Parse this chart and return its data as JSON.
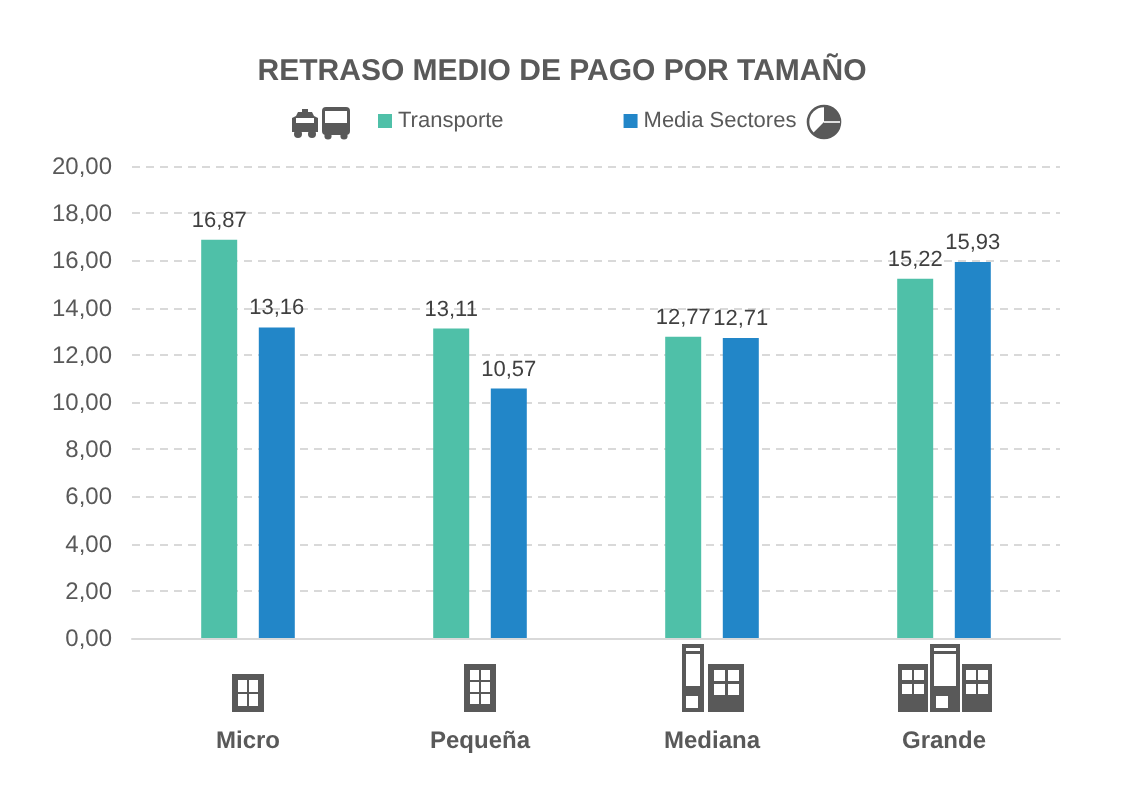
{
  "chart_data": {
    "type": "bar",
    "title": "RETRASO MEDIO DE PAGO POR TAMAÑO",
    "categories": [
      "Micro",
      "Pequeña",
      "Mediana",
      "Grande"
    ],
    "series": [
      {
        "name": "Transporte",
        "color": "#4fc0a8",
        "values": [
          16.87,
          13.11,
          12.77,
          15.22
        ],
        "value_labels": [
          "16,87",
          "13,11",
          "12,77",
          "15,22"
        ]
      },
      {
        "name": "Media Sectores",
        "color": "#2286c8",
        "values": [
          13.16,
          10.57,
          12.71,
          15.93
        ],
        "value_labels": [
          "13,16",
          "10,57",
          "12,71",
          "15,93"
        ]
      }
    ],
    "ylim": [
      0,
      20
    ],
    "yticks": [
      {
        "value": 0,
        "label": "0,00"
      },
      {
        "value": 2,
        "label": "2,00"
      },
      {
        "value": 4,
        "label": "4,00"
      },
      {
        "value": 6,
        "label": "6,00"
      },
      {
        "value": 8,
        "label": "8,00"
      },
      {
        "value": 10,
        "label": "10,00"
      },
      {
        "value": 12,
        "label": "12,00"
      },
      {
        "value": 14,
        "label": "14,00"
      },
      {
        "value": 16,
        "label": "16,00"
      },
      {
        "value": 18,
        "label": "18,00"
      },
      {
        "value": 20,
        "label": "20,00"
      }
    ],
    "grid": "y",
    "legend": "top"
  }
}
